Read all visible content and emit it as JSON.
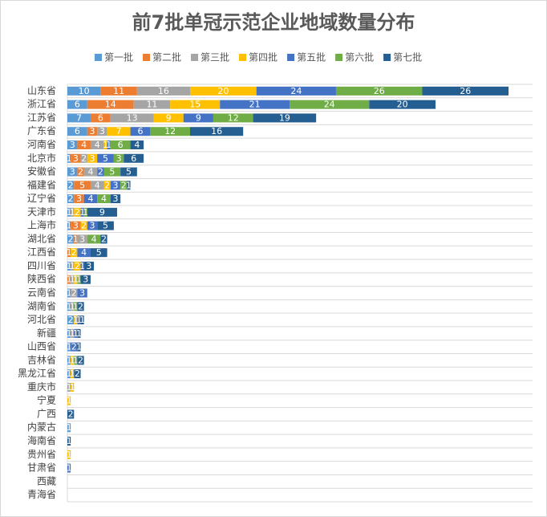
{
  "chart_data": {
    "type": "stacked-barh",
    "title": "前7批单冠示范企业地域数量分布",
    "categories": [
      "山东省",
      "浙江省",
      "江苏省",
      "广东省",
      "河南省",
      "北京市",
      "安徽省",
      "福建省",
      "辽宁省",
      "天津市",
      "上海市",
      "湖北省",
      "江西省",
      "四川省",
      "陕西省",
      "云南省",
      "湖南省",
      "河北省",
      "新疆",
      "山西省",
      "吉林省",
      "黑龙江省",
      "重庆市",
      "宁夏",
      "广西",
      "内蒙古",
      "海南省",
      "贵州省",
      "甘肃省",
      "西藏",
      "青海省"
    ],
    "series": [
      {
        "name": "第一批",
        "color": "#5b9bd5",
        "values": [
          10,
          6,
          7,
          6,
          3,
          1,
          3,
          2,
          2,
          1,
          1,
          2,
          0,
          1,
          0,
          1,
          1,
          2,
          1,
          1,
          1,
          1,
          0,
          0,
          0,
          1,
          0,
          0,
          0,
          0,
          0
        ]
      },
      {
        "name": "第二批",
        "color": "#ed7d31",
        "values": [
          11,
          14,
          6,
          3,
          4,
          3,
          2,
          5,
          3,
          0,
          3,
          1,
          1,
          0,
          1,
          0,
          0,
          0,
          0,
          0,
          0,
          0,
          0,
          0,
          0,
          0,
          0,
          0,
          0,
          0,
          0
        ]
      },
      {
        "name": "第三批",
        "color": "#a5a5a5",
        "values": [
          16,
          11,
          13,
          3,
          4,
          2,
          4,
          4,
          0,
          1,
          0,
          3,
          0,
          1,
          1,
          2,
          1,
          0,
          1,
          0,
          0,
          0,
          1,
          0,
          0,
          0,
          0,
          0,
          0,
          0,
          0
        ]
      },
      {
        "name": "第四批",
        "color": "#ffc000",
        "values": [
          20,
          15,
          9,
          7,
          1,
          3,
          0,
          2,
          0,
          2,
          2,
          0,
          2,
          2,
          1,
          0,
          0,
          1,
          0,
          0,
          1,
          1,
          1,
          1,
          0,
          0,
          0,
          1,
          0,
          0,
          0
        ]
      },
      {
        "name": "第五批",
        "color": "#4472c4",
        "values": [
          24,
          21,
          9,
          6,
          1,
          5,
          2,
          3,
          4,
          1,
          3,
          0,
          4,
          1,
          0,
          3,
          0,
          1,
          1,
          2,
          0,
          0,
          0,
          0,
          0,
          0,
          0,
          0,
          1,
          0,
          0
        ]
      },
      {
        "name": "第六批",
        "color": "#70ad47",
        "values": [
          26,
          24,
          12,
          12,
          6,
          3,
          5,
          2,
          4,
          1,
          0,
          4,
          0,
          0,
          1,
          0,
          1,
          0,
          0,
          0,
          1,
          0,
          0,
          0,
          0,
          0,
          0,
          0,
          0,
          0,
          0
        ]
      },
      {
        "name": "第七批",
        "color": "#255e91",
        "values": [
          26,
          20,
          19,
          16,
          4,
          6,
          5,
          1,
          3,
          9,
          5,
          2,
          5,
          3,
          3,
          0,
          2,
          1,
          1,
          1,
          2,
          2,
          0,
          0,
          2,
          0,
          1,
          0,
          0,
          0,
          0
        ]
      }
    ]
  }
}
